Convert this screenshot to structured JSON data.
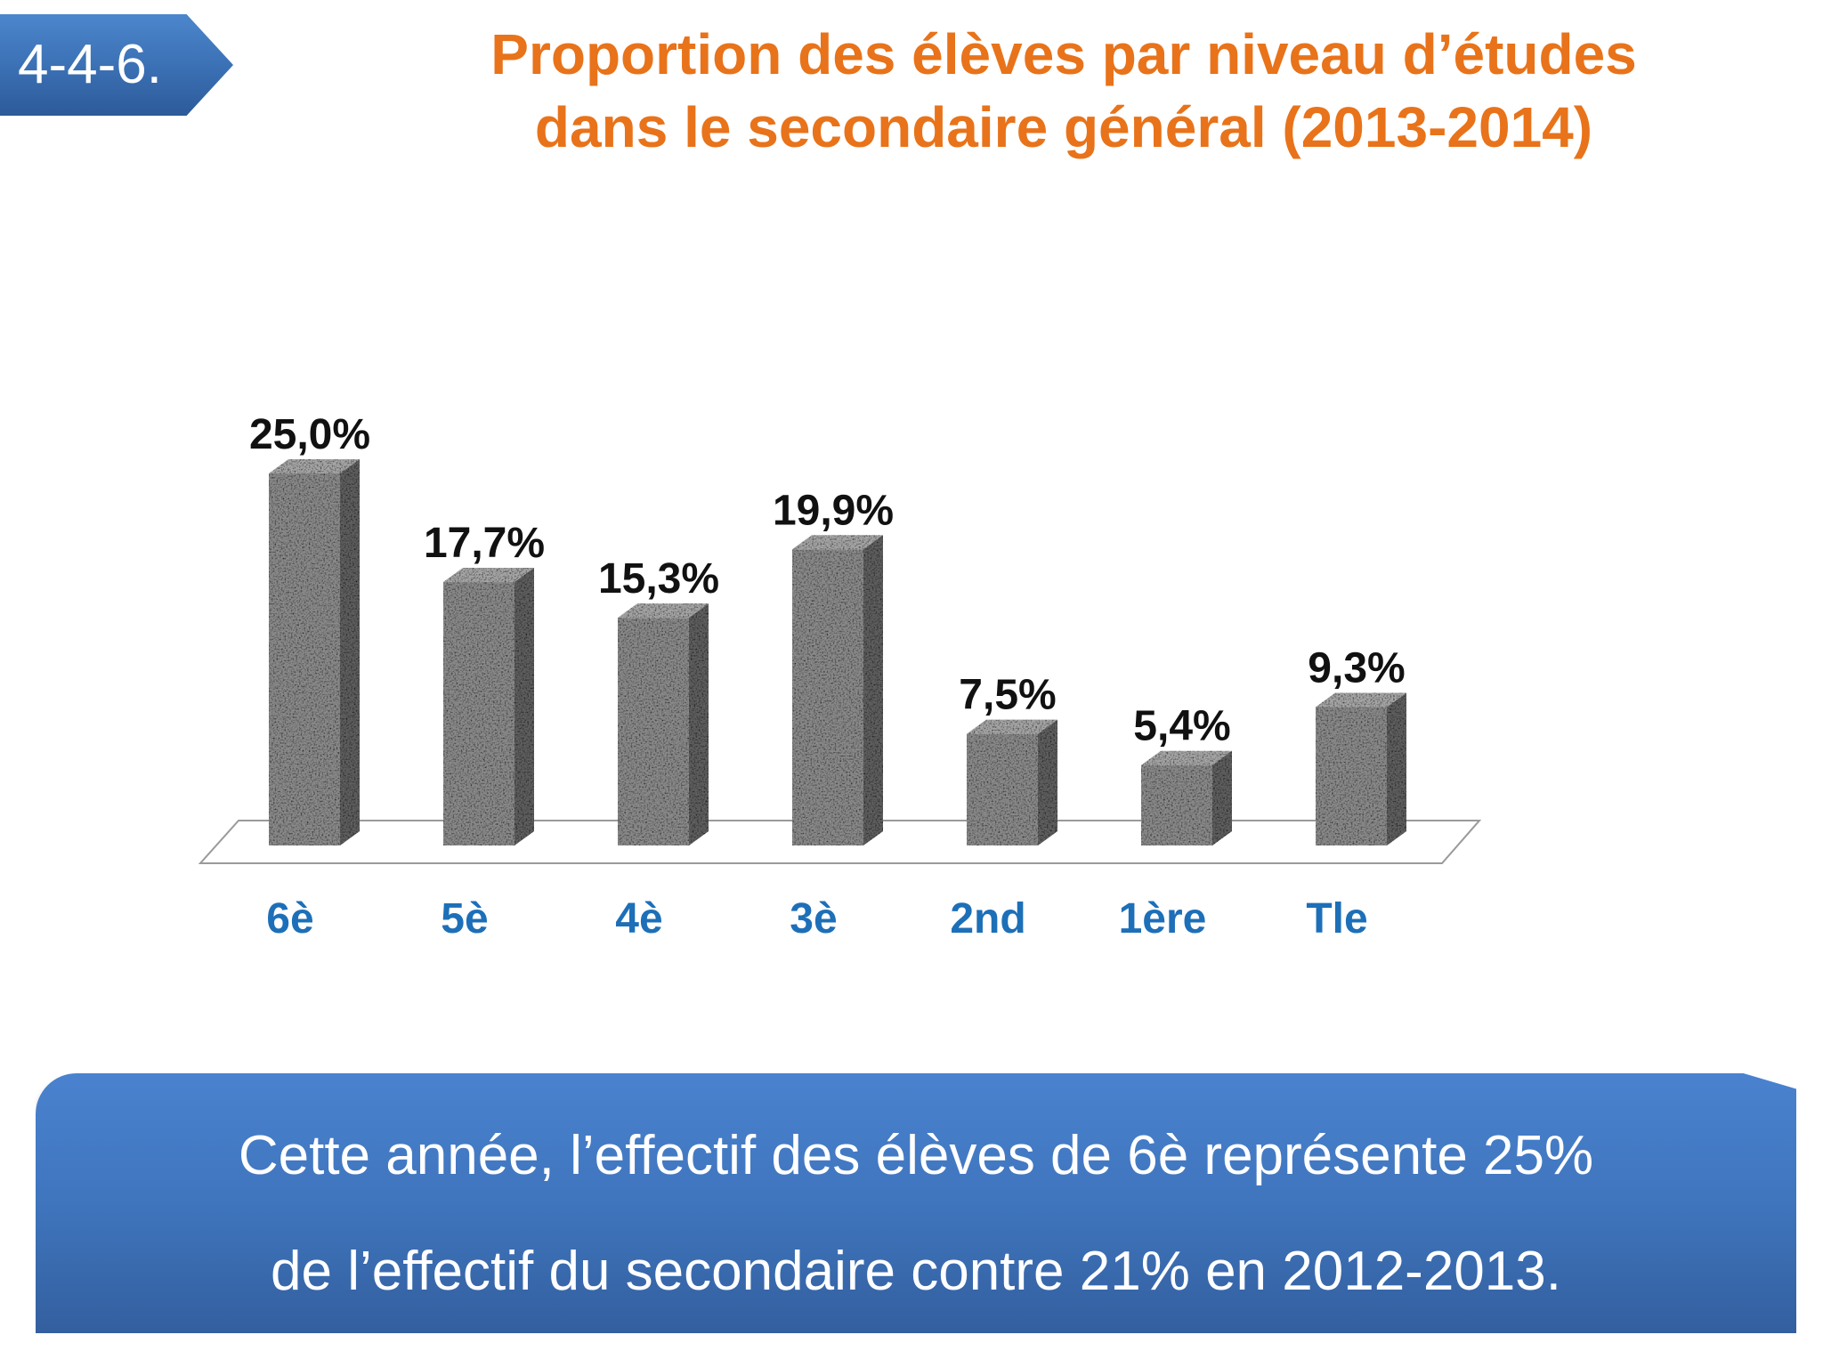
{
  "section_number": "4-4-6.",
  "title": {
    "line1": "Proportion des élèves par niveau d’études",
    "line2": "dans le secondaire général (2013-2014)"
  },
  "chart_data": {
    "type": "bar",
    "style": "3d-granite-bars",
    "categories": [
      "6è",
      "5è",
      "4è",
      "3è",
      "2nd",
      "1ère",
      "Tle"
    ],
    "values": [
      25.0,
      17.7,
      15.3,
      19.9,
      7.5,
      5.4,
      9.3
    ],
    "value_labels": [
      "25,0%",
      "17,7%",
      "15,3%",
      "19,9%",
      "7,5%",
      "5,4%",
      "9,3%"
    ],
    "unit": "%",
    "ylim": [
      0,
      25
    ],
    "grid": false,
    "legend": "none",
    "bar_color": "#8a8a8a",
    "category_label_color": "#1d6fb8",
    "value_label_color": "#111111"
  },
  "callout": {
    "line1": "Cette année, l’effectif  des élèves  de 6è représente  25%",
    "line2": "de l’effectif  du secondaire contre 21% en 2012-2013."
  },
  "colors": {
    "title": "#e8731a",
    "badge": "#3a6fb3",
    "callout": "#3f75bd"
  }
}
